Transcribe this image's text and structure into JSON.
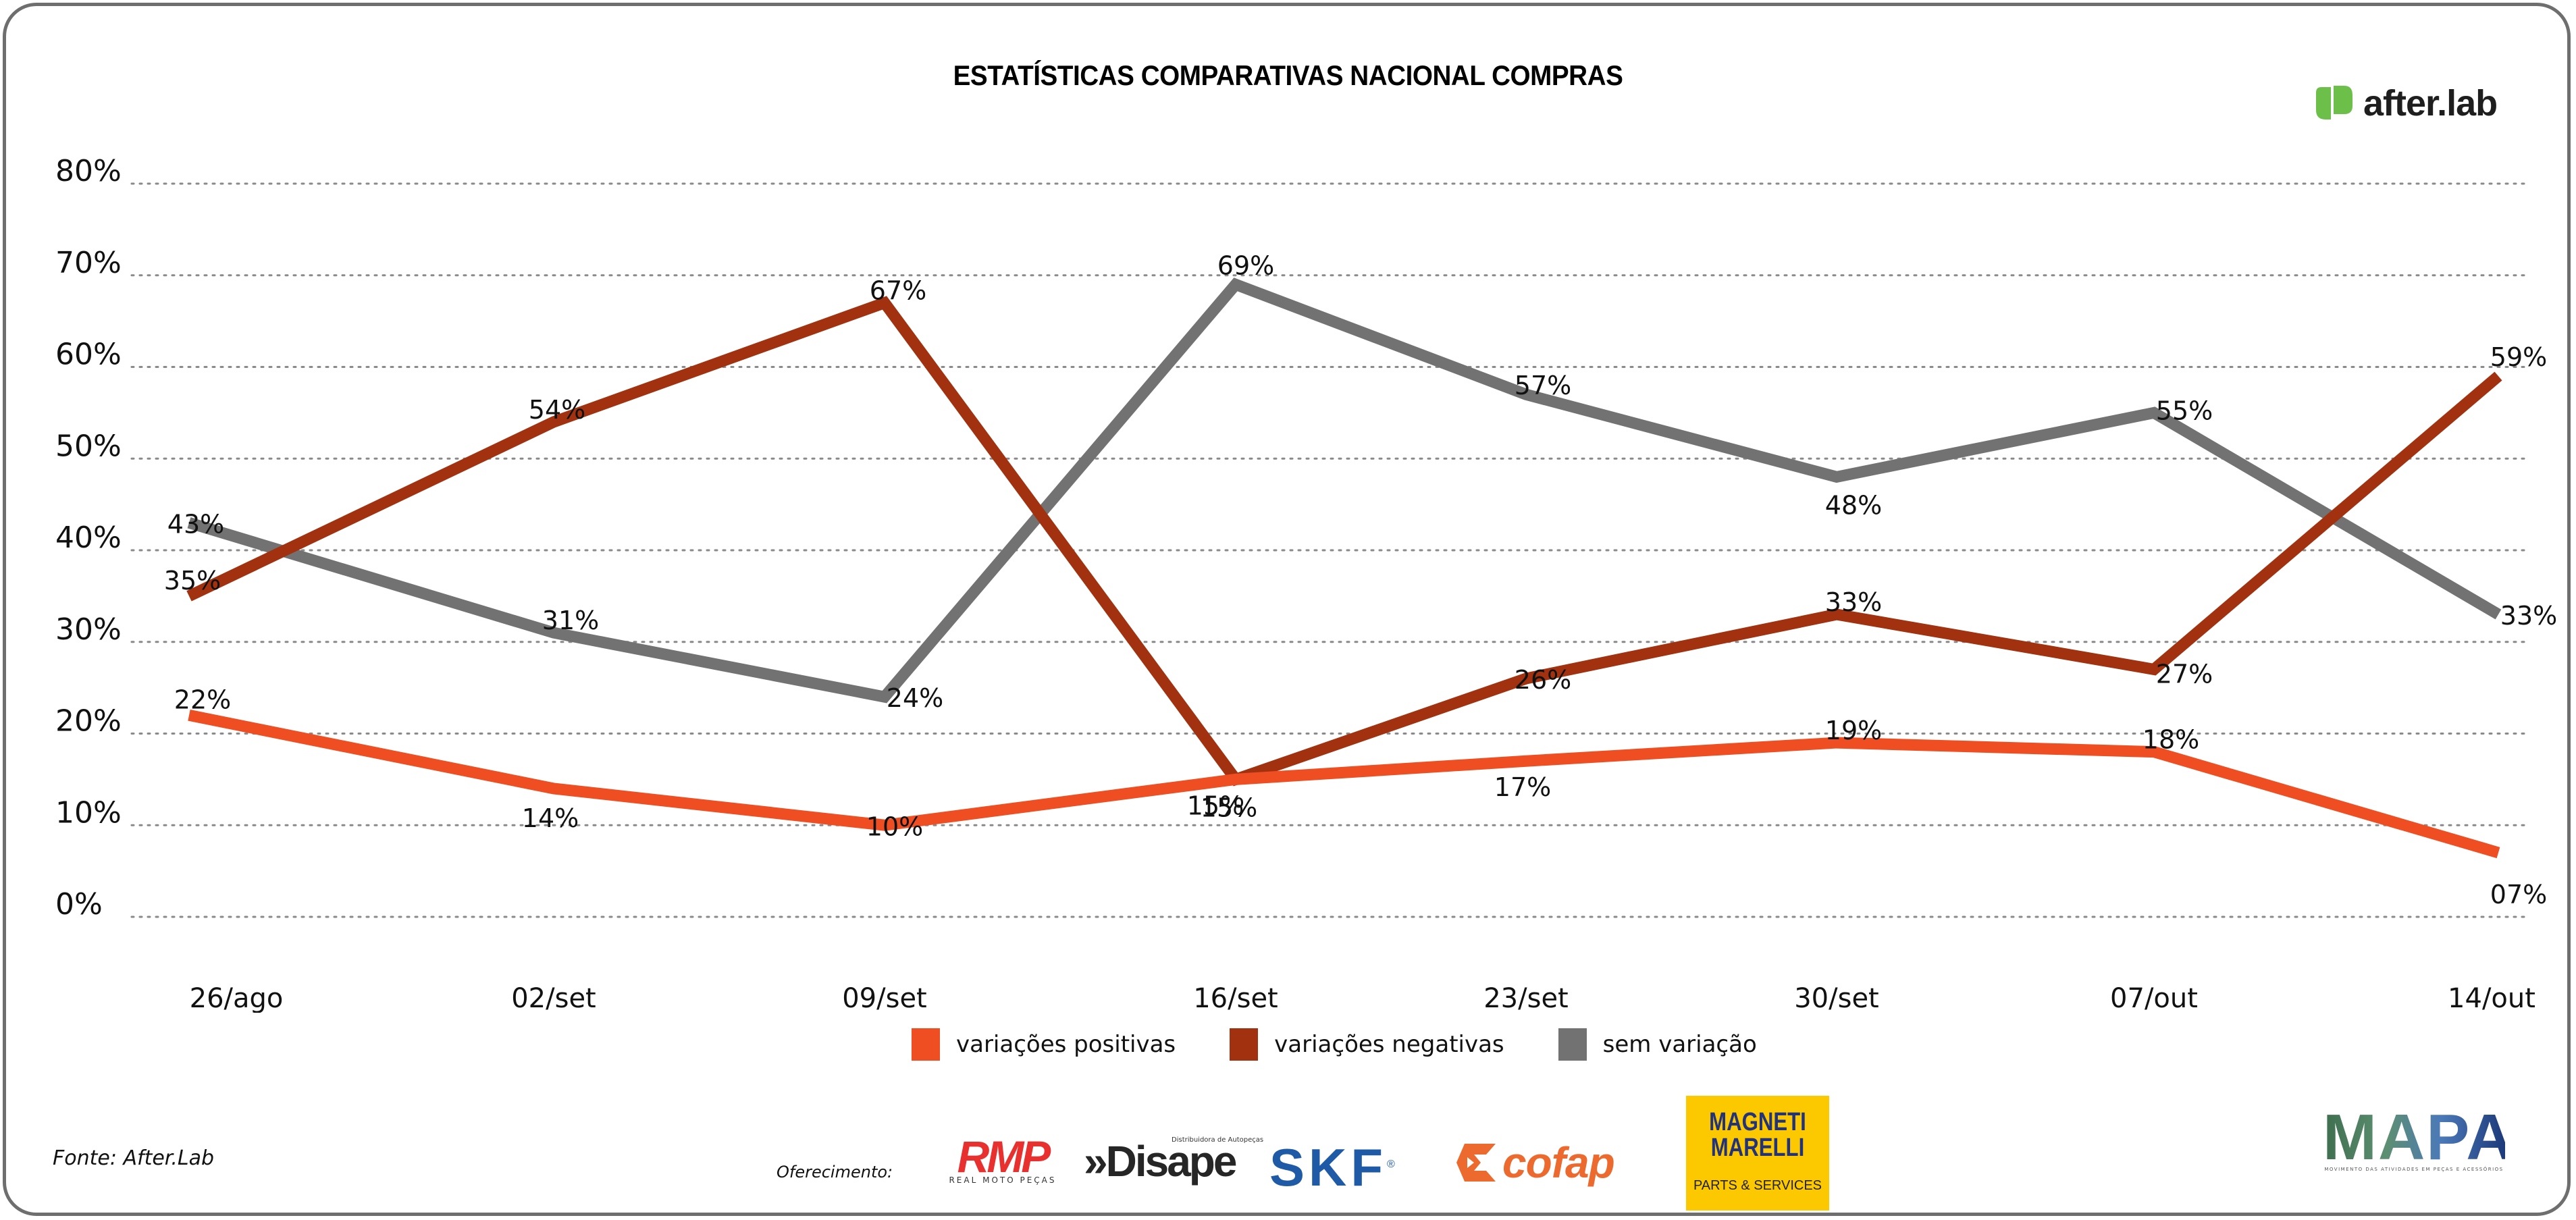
{
  "header": {
    "title": "ESTATÍSTICAS COMPARATIVAS NACIONAL COMPRAS",
    "brand": "after.lab",
    "brand_color": "#6cc04a"
  },
  "chart_data": {
    "type": "line",
    "title": "ESTATÍSTICAS COMPARATIVAS NACIONAL COMPRAS",
    "xlabel": "",
    "ylabel": "",
    "categories": [
      "26/ago",
      "02/set",
      "09/set",
      "16/set",
      "23/set",
      "30/set",
      "07/out",
      "14/out"
    ],
    "ylim": [
      0,
      80
    ],
    "yticks": [
      0,
      10,
      20,
      30,
      40,
      50,
      60,
      70,
      80
    ],
    "ytick_labels": [
      "0%",
      "10%",
      "20%",
      "30%",
      "40%",
      "50%",
      "60%",
      "70%",
      "80%"
    ],
    "grid": "horizontal-dotted",
    "legend_position": "bottom-center",
    "series": [
      {
        "name": "variações positivas",
        "color": "#ef4e23",
        "values": [
          22,
          14,
          10,
          15,
          17,
          19,
          18,
          7
        ],
        "labels": [
          "22%",
          "14%",
          "10%",
          "15%",
          "17%",
          "19%",
          "18%",
          "07%"
        ]
      },
      {
        "name": "variações negativas",
        "color": "#a1310f",
        "values": [
          35,
          54,
          67,
          15,
          26,
          33,
          27,
          59
        ],
        "labels": [
          "35%",
          "54%",
          "67%",
          "15%",
          "26%",
          "33%",
          "27%",
          "59%"
        ]
      },
      {
        "name": "sem variação",
        "color": "#727272",
        "values": [
          43,
          31,
          24,
          69,
          57,
          48,
          55,
          33
        ],
        "labels": [
          "43%",
          "31%",
          "24%",
          "69%",
          "57%",
          "48%",
          "55%",
          "33%"
        ]
      }
    ]
  },
  "footer": {
    "source": "Fonte: After.Lab",
    "offer_label": "Oferecimento:",
    "sponsors": {
      "rmp": "RMP",
      "rmp_sub": "REAL MOTO PEÇAS",
      "disape": "»Disape",
      "disape_sub": "Distribuidora de Autopeças",
      "skf": "SKF",
      "skf_reg": "®",
      "cofap": "cofap",
      "magneti_line1": "MAGNETI",
      "magneti_line2": "MARELLI",
      "magneti_sub": "PARTS & SERVICES",
      "mapa": "MAPA",
      "mapa_sub": "MOVIMENTO DAS ATIVIDADES EM PEÇAS E ACESSÓRIOS"
    }
  }
}
